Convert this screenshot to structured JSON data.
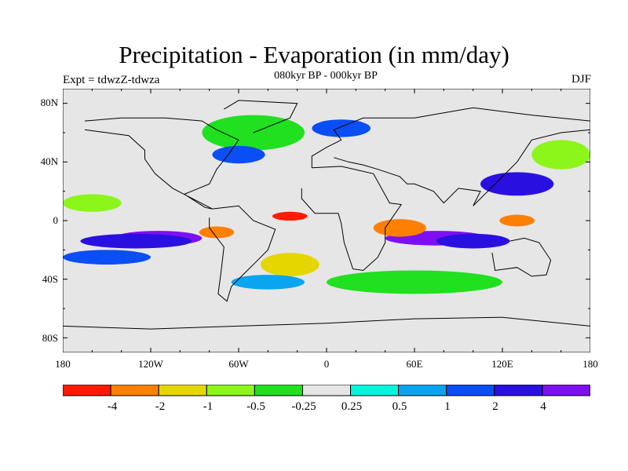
{
  "title": "Precipitation - Evaporation (in mm/day)",
  "subtitle": "080kyr BP - 000kyr BP",
  "left_label": "Expt = tdwzZ-tdwza",
  "right_label": "DJF",
  "axes": {
    "lat_ticks": [
      "80N",
      "40N",
      "0",
      "40S",
      "80S"
    ],
    "lon_ticks": [
      "180",
      "120W",
      "60W",
      "0",
      "60E",
      "120E",
      "180"
    ]
  },
  "colorbar": {
    "colors": [
      "#ff1a00",
      "#ff8000",
      "#e6d600",
      "#8cf51a",
      "#20e020",
      "#e6e6e6",
      "#00f5dc",
      "#0aa5f0",
      "#0a4ef5",
      "#2a10e0",
      "#7d10f0"
    ],
    "labels": [
      "-4",
      "-2",
      "-1",
      "-0.5",
      "-0.25",
      "0.25",
      "0.5",
      "1",
      "2",
      "4"
    ]
  },
  "map": {
    "background": "#e6e6e6",
    "features": [
      {
        "color": "#7d10f0",
        "type": "ellipse",
        "lon": -115,
        "lat": -12,
        "rx": 30,
        "ry": 5
      },
      {
        "color": "#2a10e0",
        "type": "ellipse",
        "lon": -130,
        "lat": -14,
        "rx": 38,
        "ry": 5
      },
      {
        "color": "#7d10f0",
        "type": "ellipse",
        "lon": 75,
        "lat": -12,
        "rx": 35,
        "ry": 5
      },
      {
        "color": "#2a10e0",
        "type": "ellipse",
        "lon": 100,
        "lat": -14,
        "rx": 25,
        "ry": 5
      },
      {
        "color": "#2a10e0",
        "type": "ellipse",
        "lon": 130,
        "lat": 25,
        "rx": 25,
        "ry": 8
      },
      {
        "color": "#0a4ef5",
        "type": "ellipse",
        "lon": -150,
        "lat": -25,
        "rx": 30,
        "ry": 5
      },
      {
        "color": "#ff8000",
        "type": "ellipse",
        "lon": 50,
        "lat": -5,
        "rx": 18,
        "ry": 6
      },
      {
        "color": "#ff1a00",
        "type": "ellipse",
        "lon": -25,
        "lat": 3,
        "rx": 12,
        "ry": 3
      },
      {
        "color": "#ff8000",
        "type": "ellipse",
        "lon": -75,
        "lat": -8,
        "rx": 12,
        "ry": 4
      },
      {
        "color": "#ff8000",
        "type": "ellipse",
        "lon": 130,
        "lat": 0,
        "rx": 12,
        "ry": 4
      },
      {
        "color": "#20e020",
        "type": "ellipse",
        "lon": -50,
        "lat": 60,
        "rx": 35,
        "ry": 12
      },
      {
        "color": "#0a4ef5",
        "type": "ellipse",
        "lon": -60,
        "lat": 45,
        "rx": 18,
        "ry": 6
      },
      {
        "color": "#0a4ef5",
        "type": "ellipse",
        "lon": 10,
        "lat": 63,
        "rx": 20,
        "ry": 6
      },
      {
        "color": "#e6d600",
        "type": "ellipse",
        "lon": -25,
        "lat": -30,
        "rx": 20,
        "ry": 8
      },
      {
        "color": "#8cf51a",
        "type": "ellipse",
        "lon": 160,
        "lat": 45,
        "rx": 20,
        "ry": 10
      },
      {
        "color": "#20e020",
        "type": "ellipse",
        "lon": 60,
        "lat": -42,
        "rx": 60,
        "ry": 8
      },
      {
        "color": "#0aa5f0",
        "type": "ellipse",
        "lon": -40,
        "lat": -42,
        "rx": 25,
        "ry": 5
      },
      {
        "color": "#8cf51a",
        "type": "ellipse",
        "lon": -160,
        "lat": 12,
        "rx": 20,
        "ry": 6
      }
    ],
    "land_outlines": [
      [
        [
          -165,
          68
        ],
        [
          -140,
          70
        ],
        [
          -110,
          70
        ],
        [
          -85,
          68
        ],
        [
          -75,
          62
        ],
        [
          -60,
          55
        ],
        [
          -67,
          45
        ],
        [
          -75,
          35
        ],
        [
          -80,
          25
        ],
        [
          -97,
          18
        ],
        [
          -83,
          9
        ],
        [
          -78,
          8
        ],
        [
          -105,
          22
        ],
        [
          -117,
          32
        ],
        [
          -124,
          42
        ],
        [
          -124,
          48
        ],
        [
          -135,
          58
        ],
        [
          -150,
          60
        ],
        [
          -165,
          62
        ]
      ],
      [
        [
          -78,
          8
        ],
        [
          -60,
          10
        ],
        [
          -50,
          0
        ],
        [
          -35,
          -6
        ],
        [
          -40,
          -20
        ],
        [
          -48,
          -28
        ],
        [
          -58,
          -38
        ],
        [
          -65,
          -45
        ],
        [
          -68,
          -55
        ],
        [
          -74,
          -50
        ],
        [
          -72,
          -35
        ],
        [
          -70,
          -18
        ],
        [
          -80,
          -5
        ],
        [
          -80,
          2
        ]
      ],
      [
        [
          -10,
          36
        ],
        [
          10,
          37
        ],
        [
          32,
          32
        ],
        [
          43,
          12
        ],
        [
          51,
          11
        ],
        [
          40,
          -5
        ],
        [
          40,
          -15
        ],
        [
          35,
          -25
        ],
        [
          25,
          -34
        ],
        [
          18,
          -33
        ],
        [
          12,
          -15
        ],
        [
          10,
          -2
        ],
        [
          8,
          5
        ],
        [
          -8,
          5
        ],
        [
          -17,
          15
        ],
        [
          -17,
          22
        ]
      ],
      [
        [
          -10,
          36
        ],
        [
          -10,
          44
        ],
        [
          0,
          50
        ],
        [
          10,
          55
        ],
        [
          5,
          62
        ],
        [
          25,
          70
        ],
        [
          60,
          70
        ],
        [
          100,
          77
        ],
        [
          140,
          72
        ],
        [
          180,
          68
        ],
        [
          180,
          62
        ],
        [
          160,
          60
        ],
        [
          140,
          55
        ],
        [
          130,
          40
        ],
        [
          120,
          30
        ],
        [
          110,
          20
        ],
        [
          100,
          10
        ],
        [
          105,
          20
        ],
        [
          90,
          22
        ],
        [
          80,
          12
        ],
        [
          73,
          20
        ],
        [
          60,
          25
        ],
        [
          55,
          25
        ],
        [
          50,
          30
        ],
        [
          35,
          35
        ],
        [
          25,
          38
        ],
        [
          15,
          40
        ],
        [
          5,
          43
        ]
      ],
      [
        [
          113,
          -22
        ],
        [
          115,
          -34
        ],
        [
          130,
          -32
        ],
        [
          140,
          -38
        ],
        [
          150,
          -37
        ],
        [
          153,
          -27
        ],
        [
          145,
          -15
        ],
        [
          135,
          -12
        ],
        [
          125,
          -14
        ]
      ],
      [
        [
          -50,
          60
        ],
        [
          -25,
          70
        ],
        [
          -20,
          80
        ],
        [
          -60,
          82
        ],
        [
          -70,
          76
        ]
      ],
      [
        [
          -180,
          -72
        ],
        [
          -120,
          -74
        ],
        [
          -60,
          -72
        ],
        [
          0,
          -70
        ],
        [
          60,
          -67
        ],
        [
          120,
          -66
        ],
        [
          180,
          -72
        ]
      ]
    ]
  }
}
